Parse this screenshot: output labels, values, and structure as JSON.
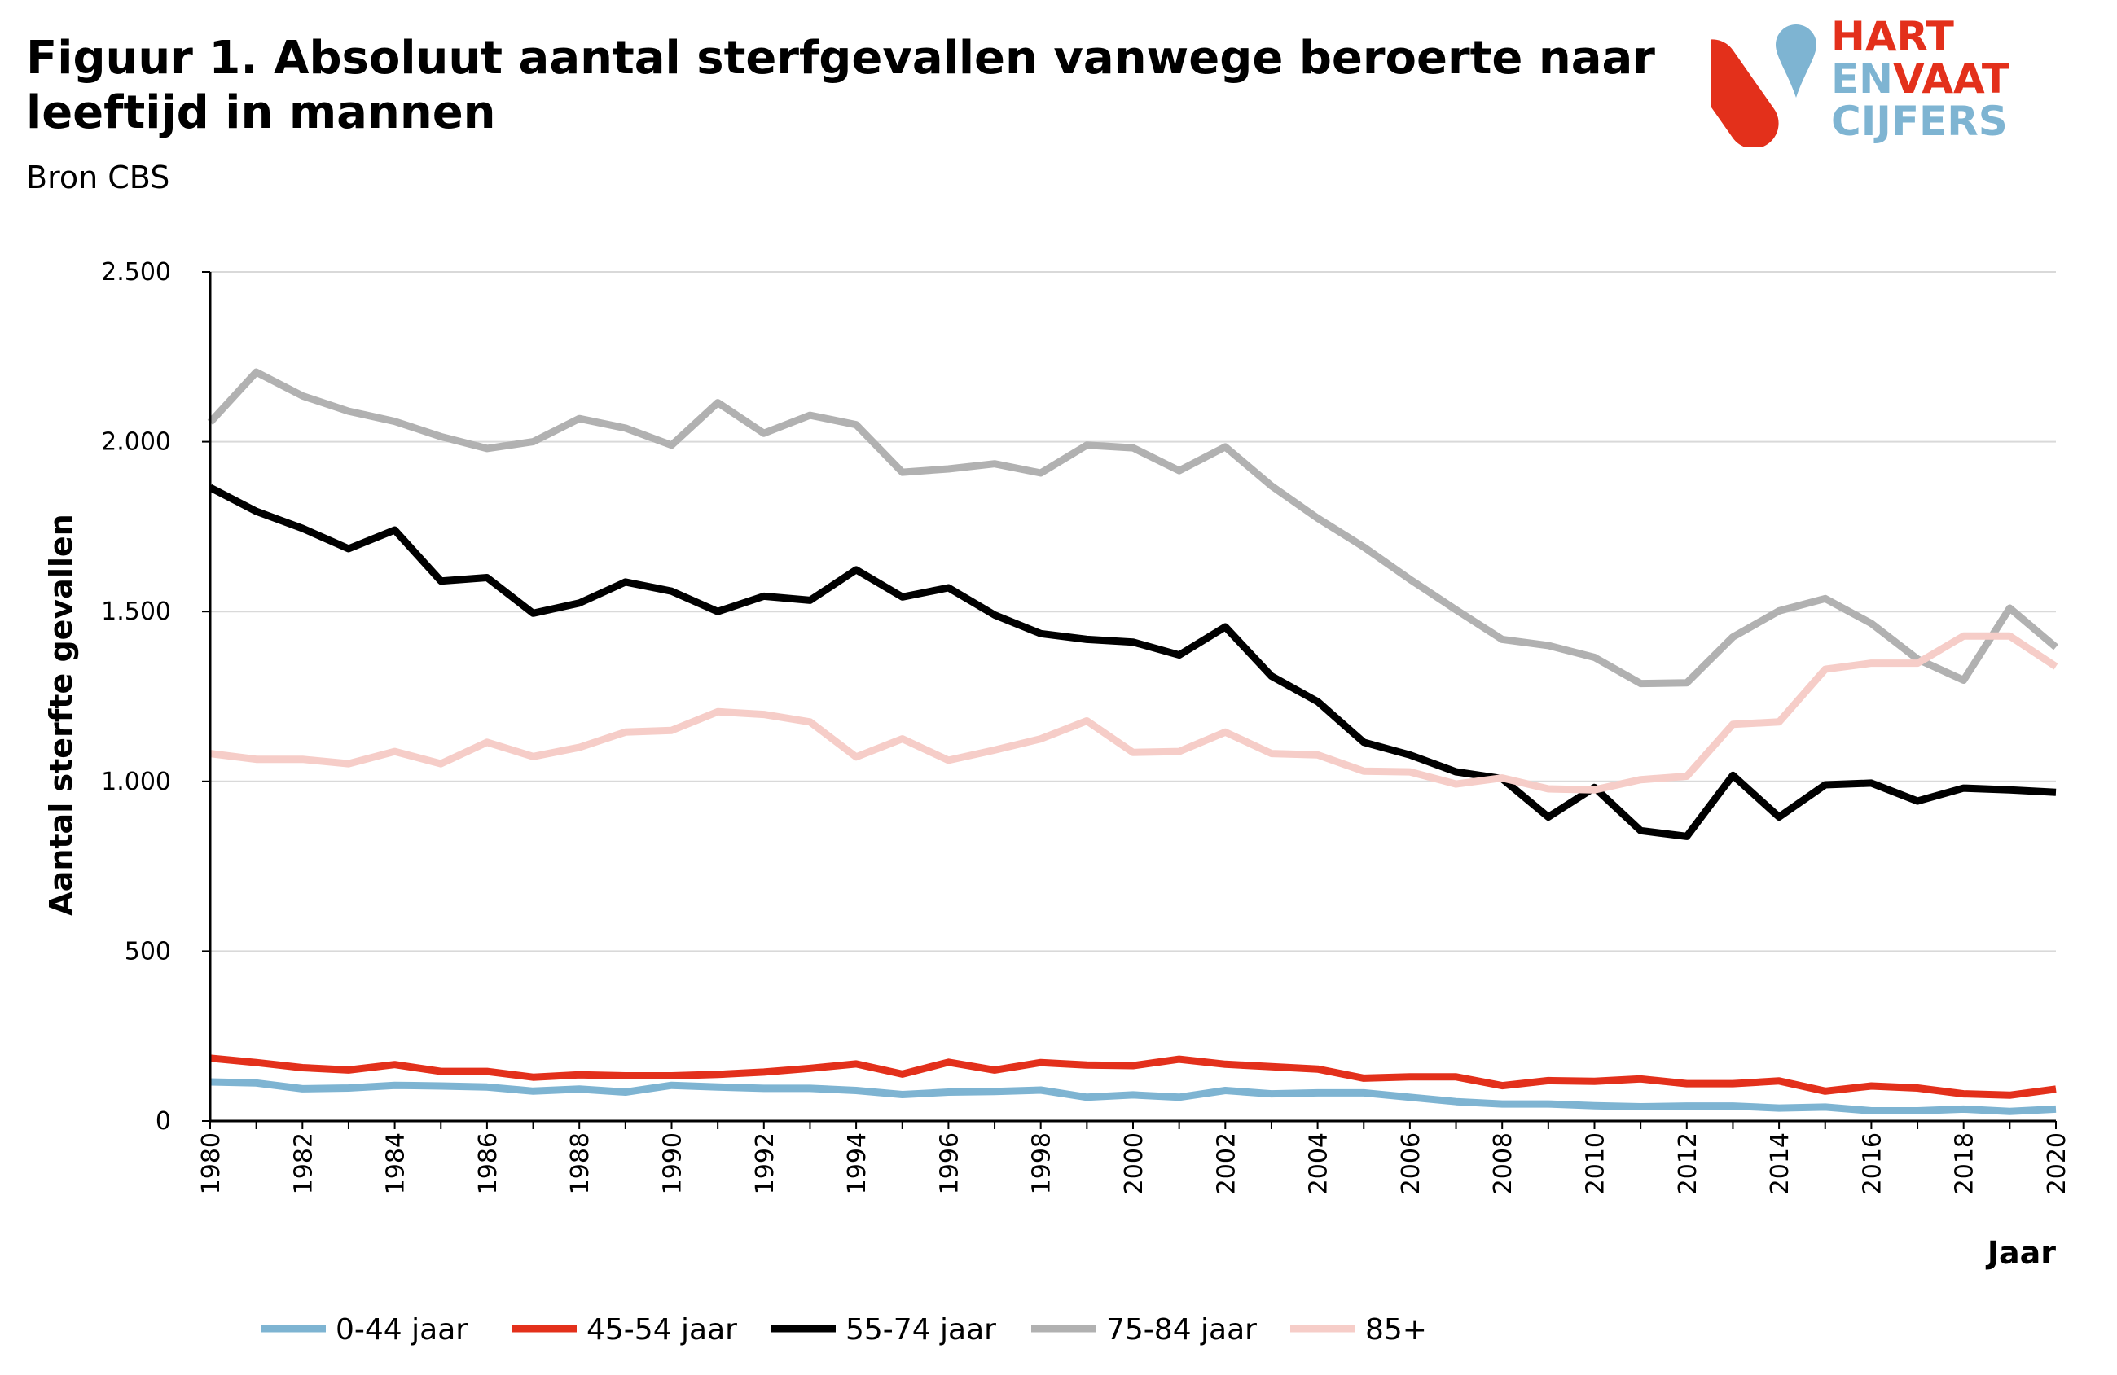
{
  "header": {
    "title": "Figuur 1. Absoluut aantal sterfgevallen vanwege beroerte naar leeftijd in mannen",
    "subtitle": "Bron CBS"
  },
  "logo": {
    "line1": "HART",
    "line2a": "EN",
    "line2b": "VAAT",
    "line3": "CIJFERS",
    "red": "#e3301b",
    "blue": "#7eb4d2"
  },
  "chart_data": {
    "type": "line",
    "title": "Figuur 1. Absoluut aantal sterfgevallen vanwege beroerte naar leeftijd in mannen",
    "xlabel": "Jaar",
    "ylabel": "Aantal sterfte gevallen",
    "ylim": [
      0,
      2500
    ],
    "yticks": [
      0,
      500,
      1000,
      1500,
      2000,
      2500
    ],
    "ytick_labels": [
      "0",
      "500",
      "1.000",
      "1.500",
      "2.000",
      "2.500"
    ],
    "x": [
      1980,
      1981,
      1982,
      1983,
      1984,
      1985,
      1986,
      1987,
      1988,
      1989,
      1990,
      1991,
      1992,
      1993,
      1994,
      1995,
      1996,
      1997,
      1998,
      1999,
      2000,
      2001,
      2002,
      2003,
      2004,
      2005,
      2006,
      2007,
      2008,
      2009,
      2010,
      2011,
      2012,
      2013,
      2014,
      2015,
      2016,
      2017,
      2018,
      2019,
      2020
    ],
    "xtick_labels": [
      "1980",
      "1982",
      "1984",
      "1986",
      "1988",
      "1990",
      "1992",
      "1994",
      "1996",
      "1998",
      "2000",
      "2002",
      "2004",
      "2006",
      "2008",
      "2010",
      "2012",
      "2014",
      "2016",
      "2018",
      "2020"
    ],
    "grid": true,
    "legend_position": "bottom",
    "series": [
      {
        "name": "0-44 jaar",
        "color": "#7eb4d2",
        "values": [
          115,
          112,
          95,
          97,
          105,
          103,
          100,
          88,
          94,
          85,
          105,
          100,
          96,
          96,
          90,
          78,
          85,
          87,
          91,
          70,
          77,
          70,
          90,
          80,
          83,
          83,
          70,
          57,
          50,
          50,
          45,
          42,
          44,
          44,
          38,
          41,
          30,
          30,
          35,
          28,
          35
        ]
      },
      {
        "name": "45-54 jaar",
        "color": "#e3301b",
        "values": [
          185,
          172,
          157,
          150,
          166,
          146,
          146,
          129,
          136,
          133,
          133,
          137,
          144,
          155,
          168,
          138,
          173,
          150,
          172,
          165,
          163,
          182,
          167,
          160,
          153,
          126,
          130,
          130,
          104,
          119,
          117,
          124,
          110,
          110,
          118,
          88,
          103,
          97,
          80,
          76,
          94
        ]
      },
      {
        "name": "55-74 jaar",
        "color": "#000000",
        "values": [
          1865,
          1795,
          1745,
          1685,
          1740,
          1590,
          1600,
          1495,
          1525,
          1587,
          1560,
          1500,
          1545,
          1533,
          1623,
          1543,
          1570,
          1490,
          1435,
          1418,
          1410,
          1372,
          1455,
          1310,
          1235,
          1115,
          1078,
          1028,
          1008,
          895,
          982,
          855,
          838,
          1018,
          895,
          990,
          995,
          942,
          980,
          975,
          968
        ]
      },
      {
        "name": "75-84 jaar",
        "color": "#b1b1b1",
        "values": [
          2057,
          2205,
          2135,
          2090,
          2060,
          2015,
          1980,
          2000,
          2068,
          2040,
          1990,
          2115,
          2025,
          2078,
          2050,
          1910,
          1920,
          1935,
          1908,
          1990,
          1982,
          1915,
          1985,
          1870,
          1775,
          1690,
          1595,
          1505,
          1418,
          1400,
          1365,
          1288,
          1290,
          1425,
          1502,
          1538,
          1465,
          1360,
          1298,
          1510,
          1395
        ]
      },
      {
        "name": "85+",
        "color": "#f6cdc8",
        "values": [
          1082,
          1065,
          1065,
          1052,
          1088,
          1052,
          1115,
          1073,
          1100,
          1145,
          1150,
          1205,
          1197,
          1175,
          1072,
          1125,
          1062,
          1092,
          1125,
          1178,
          1085,
          1088,
          1145,
          1082,
          1078,
          1030,
          1028,
          992,
          1010,
          978,
          975,
          1005,
          1015,
          1168,
          1175,
          1330,
          1348,
          1348,
          1428,
          1428,
          1338
        ]
      }
    ]
  }
}
